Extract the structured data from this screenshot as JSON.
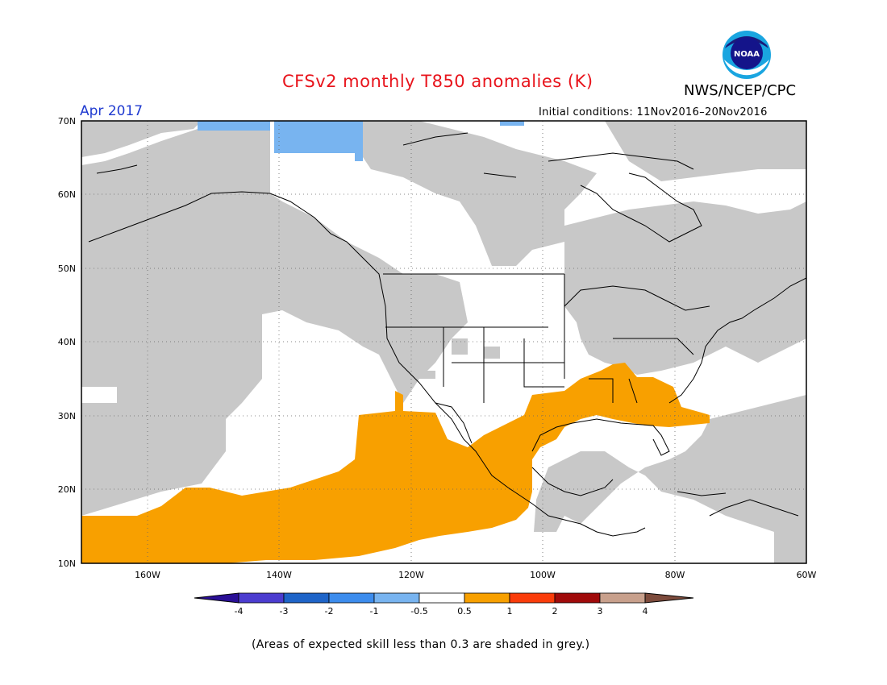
{
  "title": "CFSv2 monthly T850 anomalies (K)",
  "agency": "NWS/NCEP/CPC",
  "logo_text": "NOAA",
  "valid_month": "Apr 2017",
  "initial_conditions": "Initial conditions: 11Nov2016–20Nov2016",
  "footnote": "(Areas of expected skill less than 0.3 are shaded in grey.)",
  "map": {
    "lon_range": [
      -170,
      -60
    ],
    "lat_range": [
      10,
      70
    ],
    "lat_labels": [
      "70N",
      "60N",
      "50N",
      "40N",
      "30N",
      "20N",
      "10N"
    ],
    "lon_labels": [
      "160W",
      "140W",
      "120W",
      "100W",
      "80W",
      "60W"
    ]
  },
  "colors": {
    "low_skill_grey": "#c8c8c8",
    "warm_anomaly": "#f8a000",
    "cold_anomaly": "#78b4f0"
  },
  "colorbar": {
    "labels": [
      "-4",
      "-3",
      "-2",
      "-1",
      "-0.5",
      "0.5",
      "1",
      "2",
      "3",
      "4"
    ],
    "colors": [
      "#2a0f96",
      "#4b3ccf",
      "#1e64c8",
      "#3c8ced",
      "#78b4f0",
      "#ffffff",
      "#f8a000",
      "#fa3c0a",
      "#a00a0a",
      "#c8a08c",
      "#7d4b3c"
    ]
  }
}
